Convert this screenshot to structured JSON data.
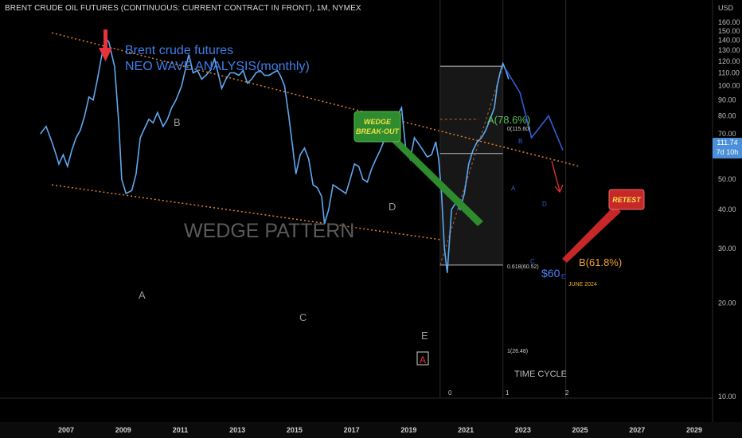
{
  "header": {
    "title": "BRENT CRUDE OIL FUTURES (CONTINUOUS: CURRENT CONTRACT IN FRONT), 1M, NYMEX"
  },
  "price_axis": {
    "unit": "USD",
    "current_price": "111.74",
    "countdown": "7d 10h"
  },
  "annotations": {
    "headline_1": "Brent crude futures",
    "headline_2": "NEO WAVE ANALYSIS(monthly)",
    "pattern_label": "WEDGE PATTERN",
    "wedge_label_1": "WEDGE",
    "wedge_label_2": "BREAK-OUT",
    "retest_label": "RETEST",
    "time_cycle": "TIME CYCLE",
    "june_2024": "JUNE 2024",
    "target_price": "$60",
    "fib_top_label": "0(115.60)",
    "fib_mid_label": "0.618(60.52)",
    "fib_bottom_label": "1(26.48)",
    "wave_A_top": "A(78.6%)",
    "wave_B_bottom": "B(61.8%)",
    "wave_box_A": "A",
    "waves": {
      "A": "A",
      "B": "B",
      "C": "C",
      "D": "D",
      "E": "E"
    },
    "proj_waves": {
      "B": "B",
      "A": "A",
      "C": "C",
      "D": "D",
      "E": "E"
    },
    "cycle_marks": [
      "0",
      "1",
      "2"
    ]
  },
  "colors": {
    "background": "#000000",
    "price_line": "#5ea8f0",
    "wedge_lines": "#e0802a",
    "red_arrow": "#e8323c",
    "green_box": "#2e8b2e",
    "retest_box": "#c62828",
    "headline": "#3f7ee8",
    "projection": "#2f5fd8"
  },
  "chart_data": {
    "type": "line",
    "title": "BRENT CRUDE OIL FUTURES (CONTINUOUS: CURRENT CONTRACT IN FRONT), 1M, NYMEX",
    "xlabel": "",
    "ylabel": "USD",
    "ylog": true,
    "xlim": [
      2006.0,
      2029.6
    ],
    "ylim": [
      10,
      175
    ],
    "y_ticks": [
      10,
      20,
      30,
      40,
      50,
      60,
      70,
      80,
      90,
      100,
      110,
      120,
      130,
      140,
      150,
      160
    ],
    "x_ticks": [
      2007,
      2009,
      2011,
      2013,
      2015,
      2017,
      2019,
      2021,
      2023,
      2025,
      2027,
      2029
    ],
    "grid": false,
    "series": [
      {
        "x": [
          2006.1,
          2006.3,
          2006.45,
          2006.6,
          2006.75,
          2006.9,
          2007.05,
          2007.2,
          2007.35,
          2007.5,
          2007.65,
          2007.8,
          2007.95,
          2008.1,
          2008.25,
          2008.4,
          2008.5,
          2008.7,
          2008.85,
          2008.95,
          2009.1,
          2009.3,
          2009.45,
          2009.6,
          2009.75,
          2009.9,
          2010.05,
          2010.2,
          2010.4,
          2010.55,
          2010.7,
          2010.85,
          2011.05,
          2011.2,
          2011.3,
          2011.45,
          2011.6,
          2011.75,
          2011.9,
          2012.05,
          2012.2,
          2012.3,
          2012.45,
          2012.6,
          2012.75,
          2012.9,
          2013.05,
          2013.2,
          2013.35,
          2013.5,
          2013.65,
          2013.8,
          2013.95,
          2014.1,
          2014.25,
          2014.4,
          2014.5,
          2014.65,
          2014.8,
          2014.95,
          2015.05,
          2015.2,
          2015.35,
          2015.5,
          2015.65,
          2015.8,
          2015.95,
          2016.05,
          2016.2,
          2016.35,
          2016.5,
          2016.65,
          2016.8,
          2016.95,
          2017.1,
          2017.25,
          2017.4,
          2017.55,
          2017.7,
          2017.85,
          2018.0,
          2018.15,
          2018.3,
          2018.45,
          2018.6,
          2018.75,
          2018.9,
          2019.05,
          2019.2,
          2019.35,
          2019.5,
          2019.65,
          2019.8,
          2019.95,
          2020.05,
          2020.15,
          2020.25,
          2020.35,
          2020.5,
          2020.65,
          2020.8,
          2020.95,
          2021.1,
          2021.25,
          2021.4,
          2021.55,
          2021.7,
          2021.85,
          2022.0,
          2022.1,
          2022.2,
          2022.3,
          2022.4,
          2022.5
        ],
        "y": [
          70,
          74,
          68,
          62,
          56,
          60,
          55,
          62,
          68,
          72,
          80,
          92,
          90,
          105,
          125,
          142,
          138,
          115,
          75,
          50,
          45,
          46,
          52,
          68,
          73,
          78,
          76,
          82,
          74,
          78,
          85,
          90,
          100,
          115,
          126,
          110,
          112,
          105,
          108,
          112,
          122,
          112,
          98,
          105,
          110,
          110,
          108,
          112,
          102,
          105,
          110,
          112,
          108,
          108,
          110,
          112,
          108,
          100,
          80,
          62,
          52,
          60,
          63,
          58,
          48,
          47,
          44,
          36,
          40,
          48,
          47,
          46,
          45,
          50,
          56,
          55,
          50,
          49,
          54,
          58,
          62,
          67,
          75,
          78,
          80,
          85,
          62,
          58,
          68,
          65,
          62,
          59,
          60,
          66,
          58,
          45,
          30,
          25,
          40,
          42,
          40,
          45,
          56,
          62,
          66,
          68,
          72,
          78,
          85,
          100,
          110,
          118,
          112,
          105
        ]
      }
    ],
    "projection": {
      "x": [
        2022.4,
        2022.9,
        2023.3,
        2023.9,
        2024.4
      ],
      "y": [
        113,
        95,
        68,
        80,
        62
      ]
    },
    "wedge_upper": {
      "x": [
        2006.5,
        2025.0
      ],
      "y": [
        148,
        55
      ]
    },
    "wedge_lower": {
      "x": [
        2006.5,
        2020.1
      ],
      "y": [
        48,
        32
      ]
    },
    "fib_levels": [
      {
        "label": "0(115.60)",
        "value": 115.6
      },
      {
        "label": "0.618(60.52)",
        "value": 60.52
      },
      {
        "label": "1(26.48)",
        "value": 26.48
      }
    ],
    "time_cycle_x": [
      2020.1,
      2022.3,
      2024.5
    ]
  }
}
